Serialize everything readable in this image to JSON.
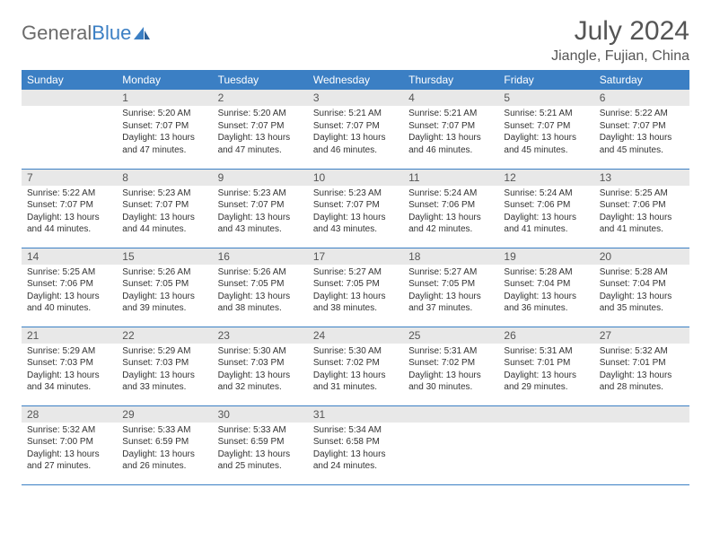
{
  "brand": {
    "name_part1": "General",
    "name_part2": "Blue"
  },
  "title": "July 2024",
  "location": "Jiangle, Fujian, China",
  "colors": {
    "header_bg": "#3b7fc4",
    "header_text": "#ffffff",
    "daynum_bg": "#e8e8e8",
    "text": "#333333",
    "rule": "#3b7fc4"
  },
  "day_headers": [
    "Sunday",
    "Monday",
    "Tuesday",
    "Wednesday",
    "Thursday",
    "Friday",
    "Saturday"
  ],
  "weeks": [
    [
      null,
      {
        "n": "1",
        "sr": "5:20 AM",
        "ss": "7:07 PM",
        "dl": "13 hours and 47 minutes."
      },
      {
        "n": "2",
        "sr": "5:20 AM",
        "ss": "7:07 PM",
        "dl": "13 hours and 47 minutes."
      },
      {
        "n": "3",
        "sr": "5:21 AM",
        "ss": "7:07 PM",
        "dl": "13 hours and 46 minutes."
      },
      {
        "n": "4",
        "sr": "5:21 AM",
        "ss": "7:07 PM",
        "dl": "13 hours and 46 minutes."
      },
      {
        "n": "5",
        "sr": "5:21 AM",
        "ss": "7:07 PM",
        "dl": "13 hours and 45 minutes."
      },
      {
        "n": "6",
        "sr": "5:22 AM",
        "ss": "7:07 PM",
        "dl": "13 hours and 45 minutes."
      }
    ],
    [
      {
        "n": "7",
        "sr": "5:22 AM",
        "ss": "7:07 PM",
        "dl": "13 hours and 44 minutes."
      },
      {
        "n": "8",
        "sr": "5:23 AM",
        "ss": "7:07 PM",
        "dl": "13 hours and 44 minutes."
      },
      {
        "n": "9",
        "sr": "5:23 AM",
        "ss": "7:07 PM",
        "dl": "13 hours and 43 minutes."
      },
      {
        "n": "10",
        "sr": "5:23 AM",
        "ss": "7:07 PM",
        "dl": "13 hours and 43 minutes."
      },
      {
        "n": "11",
        "sr": "5:24 AM",
        "ss": "7:06 PM",
        "dl": "13 hours and 42 minutes."
      },
      {
        "n": "12",
        "sr": "5:24 AM",
        "ss": "7:06 PM",
        "dl": "13 hours and 41 minutes."
      },
      {
        "n": "13",
        "sr": "5:25 AM",
        "ss": "7:06 PM",
        "dl": "13 hours and 41 minutes."
      }
    ],
    [
      {
        "n": "14",
        "sr": "5:25 AM",
        "ss": "7:06 PM",
        "dl": "13 hours and 40 minutes."
      },
      {
        "n": "15",
        "sr": "5:26 AM",
        "ss": "7:05 PM",
        "dl": "13 hours and 39 minutes."
      },
      {
        "n": "16",
        "sr": "5:26 AM",
        "ss": "7:05 PM",
        "dl": "13 hours and 38 minutes."
      },
      {
        "n": "17",
        "sr": "5:27 AM",
        "ss": "7:05 PM",
        "dl": "13 hours and 38 minutes."
      },
      {
        "n": "18",
        "sr": "5:27 AM",
        "ss": "7:05 PM",
        "dl": "13 hours and 37 minutes."
      },
      {
        "n": "19",
        "sr": "5:28 AM",
        "ss": "7:04 PM",
        "dl": "13 hours and 36 minutes."
      },
      {
        "n": "20",
        "sr": "5:28 AM",
        "ss": "7:04 PM",
        "dl": "13 hours and 35 minutes."
      }
    ],
    [
      {
        "n": "21",
        "sr": "5:29 AM",
        "ss": "7:03 PM",
        "dl": "13 hours and 34 minutes."
      },
      {
        "n": "22",
        "sr": "5:29 AM",
        "ss": "7:03 PM",
        "dl": "13 hours and 33 minutes."
      },
      {
        "n": "23",
        "sr": "5:30 AM",
        "ss": "7:03 PM",
        "dl": "13 hours and 32 minutes."
      },
      {
        "n": "24",
        "sr": "5:30 AM",
        "ss": "7:02 PM",
        "dl": "13 hours and 31 minutes."
      },
      {
        "n": "25",
        "sr": "5:31 AM",
        "ss": "7:02 PM",
        "dl": "13 hours and 30 minutes."
      },
      {
        "n": "26",
        "sr": "5:31 AM",
        "ss": "7:01 PM",
        "dl": "13 hours and 29 minutes."
      },
      {
        "n": "27",
        "sr": "5:32 AM",
        "ss": "7:01 PM",
        "dl": "13 hours and 28 minutes."
      }
    ],
    [
      {
        "n": "28",
        "sr": "5:32 AM",
        "ss": "7:00 PM",
        "dl": "13 hours and 27 minutes."
      },
      {
        "n": "29",
        "sr": "5:33 AM",
        "ss": "6:59 PM",
        "dl": "13 hours and 26 minutes."
      },
      {
        "n": "30",
        "sr": "5:33 AM",
        "ss": "6:59 PM",
        "dl": "13 hours and 25 minutes."
      },
      {
        "n": "31",
        "sr": "5:34 AM",
        "ss": "6:58 PM",
        "dl": "13 hours and 24 minutes."
      },
      null,
      null,
      null
    ]
  ],
  "labels": {
    "sunrise": "Sunrise:",
    "sunset": "Sunset:",
    "daylight": "Daylight:"
  }
}
